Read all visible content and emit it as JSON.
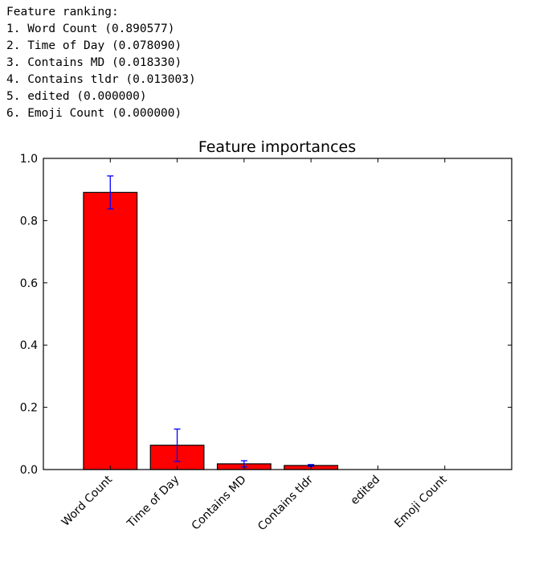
{
  "console": {
    "heading": "Feature ranking:",
    "lines": [
      "1. Word Count (0.890577)",
      "2. Time of Day (0.078090)",
      "3. Contains MD (0.018330)",
      "4. Contains tldr (0.013003)",
      "5. edited (0.000000)",
      "6. Emoji Count (0.000000)"
    ]
  },
  "chart_data": {
    "type": "bar",
    "title": "Feature importances",
    "xlabel": "",
    "ylabel": "",
    "categories": [
      "Word Count",
      "Time of Day",
      "Contains MD",
      "Contains tldr",
      "edited",
      "Emoji Count"
    ],
    "values": [
      0.890577,
      0.07809,
      0.01833,
      0.013003,
      0.0,
      0.0
    ],
    "error": [
      0.053,
      0.052,
      0.01,
      0.003,
      0.0,
      0.0
    ],
    "ylim": [
      0,
      1.0
    ],
    "yticks": [
      "0.0",
      "0.2",
      "0.4",
      "0.6",
      "0.8",
      "1.0"
    ],
    "xlim": [
      -1,
      6
    ],
    "bar_color": "#ff0000",
    "error_color": "#0000ff",
    "grid": false,
    "legend": "none"
  }
}
